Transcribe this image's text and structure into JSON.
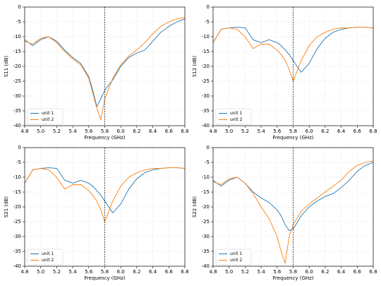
{
  "chart_data": [
    {
      "type": "line",
      "xlabel": "Frequency (GHz)",
      "ylabel": "S11 (dB)",
      "x": [
        4.8,
        4.9,
        5.0,
        5.1,
        5.2,
        5.3,
        5.4,
        5.5,
        5.6,
        5.65,
        5.7,
        5.75,
        5.8,
        5.9,
        6.0,
        6.1,
        6.2,
        6.3,
        6.4,
        6.5,
        6.6,
        6.7,
        6.8
      ],
      "series": [
        {
          "name": "unit 1",
          "color": "#1f77b4",
          "values": [
            -11,
            -13,
            -11,
            -10,
            -11.5,
            -14.5,
            -17,
            -19,
            -23.5,
            -28,
            -33.5,
            -31,
            -28,
            -24.5,
            -20,
            -17,
            -15.5,
            -14.5,
            -11.5,
            -8.5,
            -6.5,
            -5,
            -4
          ]
        },
        {
          "name": "unit 2",
          "color": "#ff7f0e",
          "values": [
            -11.5,
            -12.5,
            -10.5,
            -10,
            -12,
            -15,
            -17.5,
            -19.5,
            -24,
            -29,
            -34,
            -38,
            -31,
            -24,
            -19.5,
            -16.5,
            -14.5,
            -12,
            -9,
            -6.5,
            -5,
            -4,
            -3.5
          ]
        }
      ],
      "xlim": [
        4.8,
        6.8
      ],
      "ylim": [
        -40,
        0
      ],
      "xticks": [
        4.8,
        {
          "value": 5,
          "label": "5.0"
        },
        5.2,
        5.4,
        5.6,
        5.8,
        {
          "value": 6,
          "label": "6.0"
        },
        6.2,
        6.4,
        6.6,
        6.8
      ],
      "yticks": [
        0,
        -5,
        -10,
        -15,
        -20,
        -25,
        -30,
        -35,
        -40
      ],
      "grid": true,
      "legend": "lower left",
      "vline": 5.8
    },
    {
      "type": "line",
      "xlabel": "Frequency (GHz)",
      "ylabel": "S12 (dB)",
      "x": [
        4.8,
        4.9,
        5.0,
        5.1,
        5.2,
        5.3,
        5.4,
        5.5,
        5.6,
        5.65,
        5.7,
        5.75,
        5.8,
        5.9,
        6.0,
        6.1,
        6.2,
        6.3,
        6.4,
        6.5,
        6.6,
        6.7,
        6.8
      ],
      "series": [
        {
          "name": "unit 1",
          "color": "#1f77b4",
          "values": [
            -12,
            -7.5,
            -7,
            -6.8,
            -7,
            -11,
            -12,
            -11,
            -12,
            -13,
            -14.5,
            -16,
            -18,
            -22,
            -19,
            -14,
            -10.5,
            -8.5,
            -7.5,
            -7,
            -6.8,
            -6.8,
            -7
          ]
        },
        {
          "name": "unit 2",
          "color": "#ff7f0e",
          "values": [
            -12,
            -7.5,
            -7,
            -7.5,
            -10,
            -14,
            -12.5,
            -12.5,
            -14.5,
            -16,
            -18,
            -21,
            -25,
            -18,
            -13,
            -10,
            -8.5,
            -7.5,
            -7,
            -7,
            -6.8,
            -6.8,
            -7
          ]
        }
      ],
      "xlim": [
        4.8,
        6.8
      ],
      "ylim": [
        -40,
        0
      ],
      "xticks": [
        4.8,
        {
          "value": 5,
          "label": "5.0"
        },
        5.2,
        5.4,
        5.6,
        5.8,
        {
          "value": 6,
          "label": "6.0"
        },
        6.2,
        6.4,
        6.6,
        6.8
      ],
      "yticks": [
        0,
        -5,
        -10,
        -15,
        -20,
        -25,
        -30,
        -35,
        -40
      ],
      "grid": true,
      "legend": "lower left",
      "vline": 5.8
    },
    {
      "type": "line",
      "xlabel": "Frequency (GHz)",
      "ylabel": "S21 (dB)",
      "x": [
        4.8,
        4.9,
        5.0,
        5.1,
        5.2,
        5.3,
        5.4,
        5.5,
        5.6,
        5.65,
        5.7,
        5.75,
        5.8,
        5.9,
        6.0,
        6.1,
        6.2,
        6.3,
        6.4,
        6.5,
        6.6,
        6.7,
        6.8
      ],
      "series": [
        {
          "name": "unit 1",
          "color": "#1f77b4",
          "values": [
            -12,
            -7.5,
            -7,
            -6.8,
            -7,
            -11,
            -12,
            -11,
            -12,
            -13,
            -14.5,
            -16,
            -18,
            -22,
            -19,
            -14,
            -10.5,
            -8.5,
            -7.5,
            -7,
            -6.8,
            -6.8,
            -7
          ]
        },
        {
          "name": "unit 2",
          "color": "#ff7f0e",
          "values": [
            -12,
            -7.5,
            -7,
            -7.5,
            -10,
            -14,
            -12.5,
            -12.5,
            -14.5,
            -16,
            -18,
            -21,
            -25,
            -18,
            -13,
            -10,
            -8.5,
            -7.5,
            -7,
            -7,
            -6.8,
            -6.8,
            -7
          ]
        }
      ],
      "xlim": [
        4.8,
        6.8
      ],
      "ylim": [
        -40,
        0
      ],
      "xticks": [
        4.8,
        {
          "value": 5,
          "label": "5.0"
        },
        5.2,
        5.4,
        5.6,
        5.8,
        {
          "value": 6,
          "label": "6.0"
        },
        6.2,
        6.4,
        6.6,
        6.8
      ],
      "yticks": [
        0,
        -5,
        -10,
        -15,
        -20,
        -25,
        -30,
        -35,
        -40
      ],
      "grid": true,
      "legend": "lower left",
      "vline": 5.8
    },
    {
      "type": "line",
      "xlabel": "Frequency (GHz)",
      "ylabel": "S22 (dB)",
      "x": [
        4.8,
        4.9,
        5.0,
        5.1,
        5.2,
        5.3,
        5.4,
        5.5,
        5.6,
        5.65,
        5.7,
        5.75,
        5.8,
        5.9,
        6.0,
        6.1,
        6.2,
        6.3,
        6.4,
        6.5,
        6.6,
        6.7,
        6.8
      ],
      "series": [
        {
          "name": "unit 1",
          "color": "#1f77b4",
          "values": [
            -11,
            -13,
            -11,
            -10,
            -12,
            -15,
            -17,
            -18.5,
            -21,
            -23,
            -26,
            -28,
            -27.5,
            -23,
            -20,
            -18,
            -16.5,
            -15.5,
            -13.5,
            -11,
            -8,
            -6,
            -5
          ]
        },
        {
          "name": "unit 2",
          "color": "#ff7f0e",
          "values": [
            -11.5,
            -12.5,
            -10.5,
            -10,
            -12,
            -15.5,
            -20,
            -24,
            -30,
            -35,
            -39,
            -30,
            -26,
            -21.5,
            -19,
            -17,
            -15,
            -13,
            -11,
            -8,
            -6,
            -5,
            -4.5
          ]
        }
      ],
      "xlim": [
        4.8,
        6.8
      ],
      "ylim": [
        -40,
        0
      ],
      "xticks": [
        4.8,
        {
          "value": 5,
          "label": "5.0"
        },
        5.2,
        5.4,
        5.6,
        5.8,
        {
          "value": 6,
          "label": "6.0"
        },
        6.2,
        6.4,
        6.6,
        6.8
      ],
      "yticks": [
        0,
        -5,
        -10,
        -15,
        -20,
        -25,
        -30,
        -35,
        -40
      ],
      "grid": true,
      "legend": "lower left",
      "vline": 5.8
    }
  ]
}
